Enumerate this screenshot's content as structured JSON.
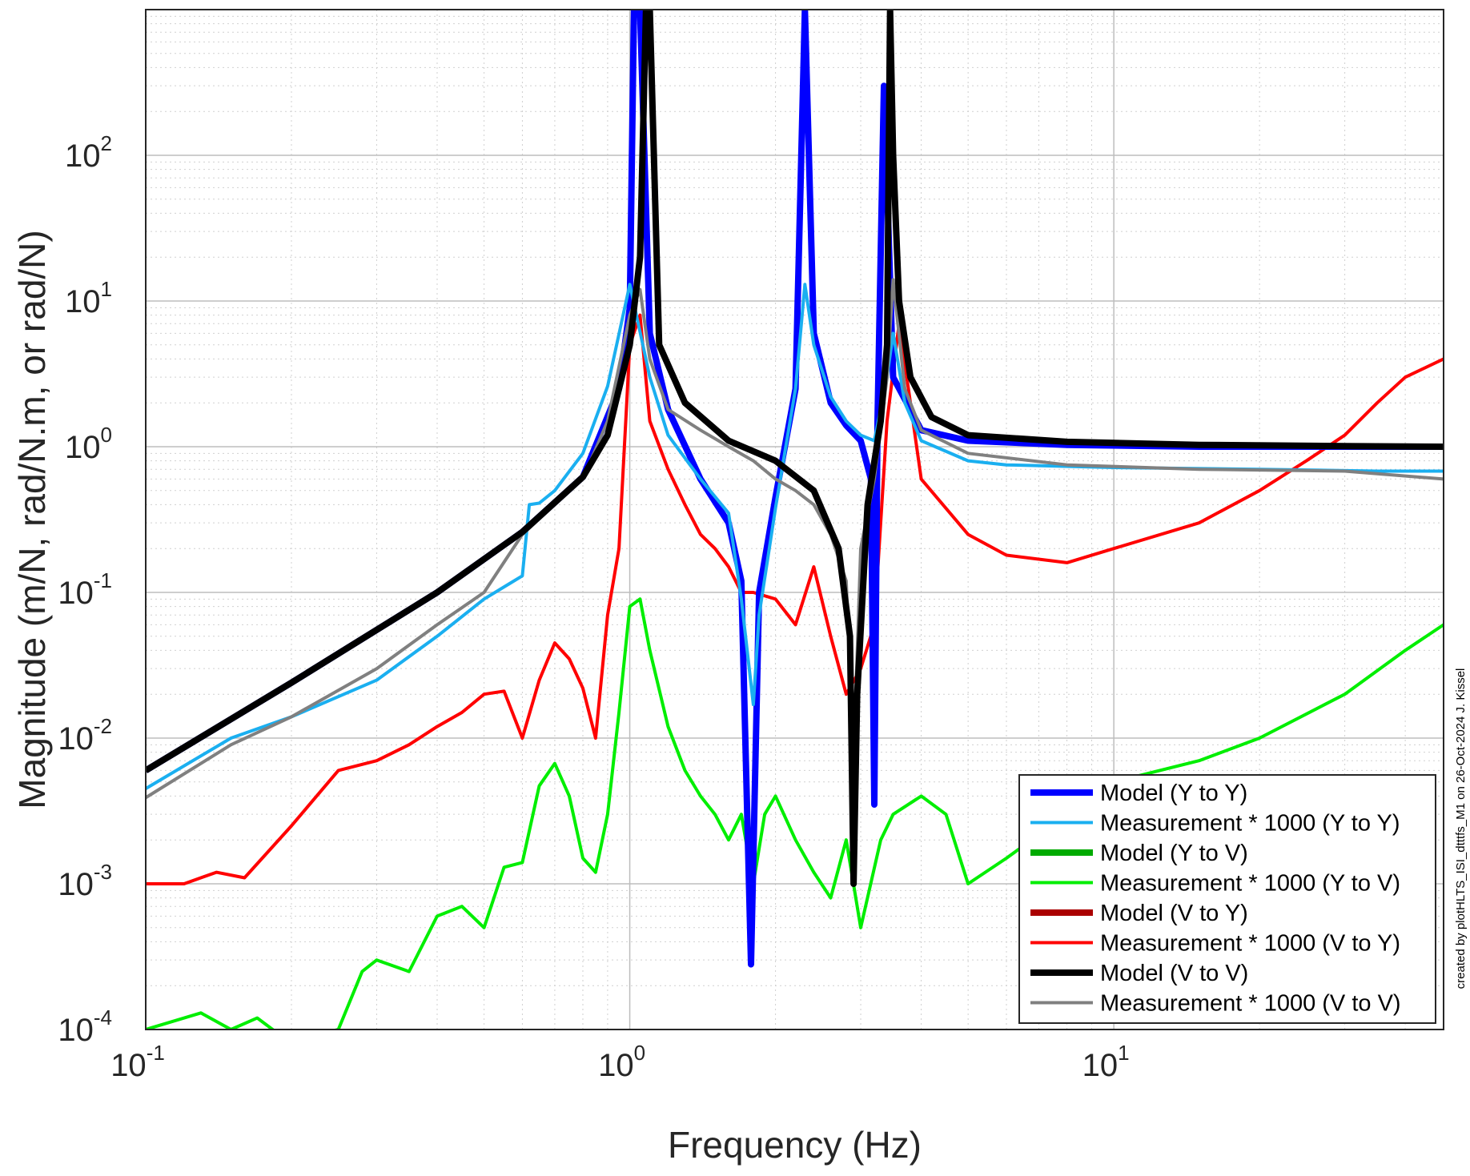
{
  "chart_data": {
    "type": "line",
    "title": "",
    "xlabel": "Frequency (Hz)",
    "ylabel": "Magnitude (m/N, rad/N.m, or rad/N)",
    "x_scale": "log",
    "y_scale": "log",
    "xlim": [
      0.1,
      48
    ],
    "ylim": [
      0.0001,
      1000
    ],
    "x_ticks": [
      {
        "value": 0.1,
        "base": "10",
        "exp": "-1"
      },
      {
        "value": 1,
        "base": "10",
        "exp": "0"
      },
      {
        "value": 10,
        "base": "10",
        "exp": "1"
      }
    ],
    "y_ticks": [
      {
        "value": 0.0001,
        "base": "10",
        "exp": "-4"
      },
      {
        "value": 0.001,
        "base": "10",
        "exp": "-3"
      },
      {
        "value": 0.01,
        "base": "10",
        "exp": "-2"
      },
      {
        "value": 0.1,
        "base": "10",
        "exp": "-1"
      },
      {
        "value": 1,
        "base": "10",
        "exp": "0"
      },
      {
        "value": 10,
        "base": "10",
        "exp": "1"
      },
      {
        "value": 100,
        "base": "10",
        "exp": "2"
      }
    ],
    "grid": true,
    "minor_grid": true,
    "legend_position": "bottom-right",
    "series": [
      {
        "name": "Model (Y to Y)",
        "color": "#0000ff",
        "width": 8,
        "x": [
          0.1,
          0.2,
          0.4,
          0.6,
          0.8,
          0.95,
          1.0,
          1.02,
          1.05,
          1.1,
          1.2,
          1.4,
          1.6,
          1.7,
          1.78,
          1.85,
          2.0,
          2.2,
          2.3,
          2.4,
          2.6,
          2.8,
          3.0,
          3.15,
          3.2,
          3.25,
          3.35,
          3.5,
          4,
          5,
          8,
          15,
          30,
          48
        ],
        "y": [
          0.006,
          0.024,
          0.1,
          0.26,
          0.62,
          2.5,
          9,
          1000,
          1000,
          6.0,
          1.8,
          0.6,
          0.3,
          0.12,
          0.00028,
          0.1,
          0.45,
          2.5,
          1000,
          6,
          2.0,
          1.4,
          1.1,
          0.6,
          0.0035,
          1.5,
          300,
          3,
          1.3,
          1.1,
          1.03,
          1.0,
          1.0,
          1.0
        ]
      },
      {
        "name": "Measurement * 1000 (Y to Y)",
        "color": "#1aaff0",
        "width": 4,
        "x": [
          0.1,
          0.15,
          0.2,
          0.3,
          0.4,
          0.5,
          0.6,
          0.62,
          0.65,
          0.7,
          0.8,
          0.9,
          1.0,
          1.1,
          1.2,
          1.4,
          1.6,
          1.7,
          1.8,
          1.85,
          2.0,
          2.2,
          2.3,
          2.4,
          2.6,
          2.8,
          3.0,
          3.2,
          3.4,
          3.5,
          3.7,
          4,
          5,
          6,
          10,
          20,
          35,
          48
        ],
        "y": [
          0.0045,
          0.01,
          0.014,
          0.025,
          0.05,
          0.09,
          0.13,
          0.4,
          0.41,
          0.5,
          0.9,
          2.6,
          13,
          3,
          1.2,
          0.6,
          0.35,
          0.09,
          0.017,
          0.07,
          0.38,
          2.5,
          13,
          5,
          2.2,
          1.5,
          1.2,
          1.1,
          3,
          6,
          2.0,
          1.1,
          0.8,
          0.75,
          0.72,
          0.7,
          0.68,
          0.68
        ]
      },
      {
        "name": "Model (Y to V)",
        "color": "#00aa00",
        "width": 8,
        "x": [],
        "y": []
      },
      {
        "name": "Measurement * 1000 (Y to V)",
        "color": "#00ee00",
        "width": 4,
        "x": [
          0.1,
          0.13,
          0.15,
          0.17,
          0.2,
          0.22,
          0.25,
          0.28,
          0.3,
          0.35,
          0.4,
          0.45,
          0.5,
          0.55,
          0.6,
          0.65,
          0.7,
          0.75,
          0.8,
          0.85,
          0.9,
          0.95,
          1.0,
          1.05,
          1.1,
          1.2,
          1.3,
          1.4,
          1.5,
          1.6,
          1.7,
          1.8,
          1.9,
          2.0,
          2.2,
          2.4,
          2.6,
          2.8,
          3.0,
          3.3,
          3.5,
          4,
          4.5,
          5,
          6,
          8,
          10,
          15,
          20,
          30,
          40,
          48
        ],
        "y": [
          0.0001,
          0.00013,
          0.0001,
          0.00012,
          8e-05,
          9e-05,
          0.0001,
          0.00025,
          0.0003,
          0.00025,
          0.0006,
          0.0007,
          0.0005,
          0.0013,
          0.0014,
          0.0047,
          0.0067,
          0.004,
          0.0015,
          0.0012,
          0.003,
          0.015,
          0.08,
          0.09,
          0.04,
          0.012,
          0.006,
          0.004,
          0.003,
          0.002,
          0.003,
          0.001,
          0.003,
          0.004,
          0.002,
          0.0012,
          0.0008,
          0.002,
          0.0005,
          0.002,
          0.003,
          0.004,
          0.003,
          0.001,
          0.0015,
          0.003,
          0.005,
          0.007,
          0.01,
          0.02,
          0.04,
          0.06
        ]
      },
      {
        "name": "Model (V to Y)",
        "color": "#aa0000",
        "width": 8,
        "x": [],
        "y": []
      },
      {
        "name": "Measurement * 1000 (V to Y)",
        "color": "#ff0000",
        "width": 4,
        "x": [
          0.1,
          0.12,
          0.14,
          0.16,
          0.2,
          0.25,
          0.3,
          0.35,
          0.4,
          0.45,
          0.5,
          0.55,
          0.6,
          0.65,
          0.7,
          0.75,
          0.8,
          0.85,
          0.9,
          0.95,
          1.0,
          1.05,
          1.1,
          1.2,
          1.3,
          1.4,
          1.5,
          1.6,
          1.7,
          1.8,
          2.0,
          2.2,
          2.4,
          2.6,
          2.8,
          3.0,
          3.2,
          3.4,
          3.6,
          3.8,
          4,
          5,
          6,
          8,
          10,
          15,
          20,
          25,
          30,
          35,
          40,
          48
        ],
        "y": [
          0.001,
          0.001,
          0.0012,
          0.0011,
          0.0025,
          0.006,
          0.007,
          0.009,
          0.012,
          0.015,
          0.02,
          0.021,
          0.01,
          0.025,
          0.045,
          0.035,
          0.022,
          0.01,
          0.07,
          0.2,
          5,
          8,
          1.5,
          0.7,
          0.4,
          0.25,
          0.2,
          0.15,
          0.1,
          0.1,
          0.09,
          0.06,
          0.15,
          0.05,
          0.02,
          0.03,
          0.06,
          1.5,
          7,
          2,
          0.6,
          0.25,
          0.18,
          0.16,
          0.2,
          0.3,
          0.5,
          0.8,
          1.2,
          2,
          3,
          4
        ]
      },
      {
        "name": "Model (V to V)",
        "color": "#000000",
        "width": 8,
        "x": [
          0.1,
          0.2,
          0.4,
          0.6,
          0.8,
          0.9,
          1.0,
          1.05,
          1.08,
          1.1,
          1.15,
          1.3,
          1.6,
          2.0,
          2.4,
          2.7,
          2.85,
          2.9,
          2.95,
          3.1,
          3.3,
          3.4,
          3.45,
          3.5,
          3.6,
          3.8,
          4.2,
          5,
          8,
          15,
          30,
          48
        ],
        "y": [
          0.006,
          0.024,
          0.1,
          0.26,
          0.62,
          1.2,
          5,
          20,
          1000,
          1000,
          5,
          2,
          1.1,
          0.8,
          0.5,
          0.2,
          0.05,
          0.001,
          0.02,
          0.4,
          1.5,
          5,
          1000,
          100,
          10,
          3,
          1.6,
          1.2,
          1.08,
          1.03,
          1.01,
          1.0
        ]
      },
      {
        "name": "Measurement * 1000 (V to V)",
        "color": "#808080",
        "width": 4,
        "x": [
          0.1,
          0.15,
          0.2,
          0.3,
          0.4,
          0.5,
          0.6,
          0.7,
          0.8,
          0.9,
          1.0,
          1.05,
          1.1,
          1.2,
          1.4,
          1.6,
          1.8,
          2.0,
          2.2,
          2.4,
          2.6,
          2.8,
          2.9,
          3.0,
          3.2,
          3.4,
          3.5,
          3.7,
          4,
          5,
          8,
          15,
          30,
          48
        ],
        "y": [
          0.0039,
          0.009,
          0.014,
          0.03,
          0.06,
          0.1,
          0.25,
          0.4,
          0.6,
          1.5,
          8,
          12,
          4,
          1.8,
          1.3,
          1.0,
          0.8,
          0.6,
          0.5,
          0.4,
          0.25,
          0.12,
          0.007,
          0.2,
          0.6,
          3,
          14,
          2.5,
          1.3,
          0.9,
          0.75,
          0.7,
          0.68,
          0.6
        ]
      }
    ]
  },
  "footer_note": "created by plotHLTS_ISI_dtttfs_M1 on 26-Oct-2024 J. Kissel"
}
